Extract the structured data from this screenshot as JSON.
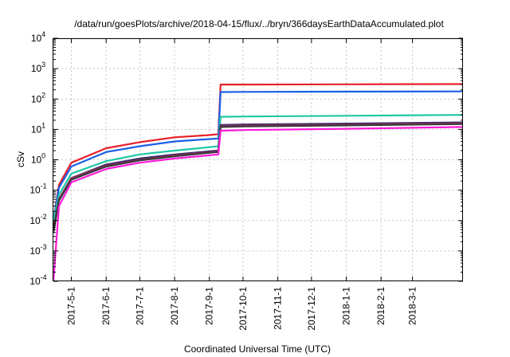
{
  "chart_data": {
    "type": "line",
    "title": "/data/run/goesPlots/archive/2018-04-15/flux/../bryn/366daysEarthDataAccumulated.plot",
    "xlabel": "Coordinated Universal Time (UTC)",
    "ylabel": "cSv",
    "yscale": "log",
    "ylim": [
      0.0001,
      10000
    ],
    "y_ticks": [
      {
        "value": 0.0001,
        "base": "10",
        "exp": "-4"
      },
      {
        "value": 0.001,
        "base": "10",
        "exp": "-3"
      },
      {
        "value": 0.01,
        "base": "10",
        "exp": "-2"
      },
      {
        "value": 0.1,
        "base": "10",
        "exp": "-1"
      },
      {
        "value": 1,
        "base": "10",
        "exp": "0"
      },
      {
        "value": 10,
        "base": "10",
        "exp": "1"
      },
      {
        "value": 100,
        "base": "10",
        "exp": "2"
      },
      {
        "value": 1000,
        "base": "10",
        "exp": "3"
      },
      {
        "value": 10000,
        "base": "10",
        "exp": "4"
      }
    ],
    "xlim": [
      "2017-04-15",
      "2018-04-15"
    ],
    "x_ticks": [
      "2017-5-1",
      "2017-6-1",
      "2017-7-1",
      "2017-8-1",
      "2017-9-1",
      "2017-10-1",
      "2017-11-1",
      "2017-12-1",
      "2018-1-1",
      "2018-2-1",
      "2018-3-1"
    ],
    "x_tick_dates": [
      "2017-05-01",
      "2017-06-01",
      "2017-07-01",
      "2017-08-01",
      "2017-09-01",
      "2017-10-01",
      "2017-11-01",
      "2017-12-01",
      "2018-01-01",
      "2018-02-01",
      "2018-03-01"
    ],
    "grid": true,
    "x": [
      "2017-04-15",
      "2017-04-20",
      "2017-05-01",
      "2017-06-01",
      "2017-07-01",
      "2017-08-01",
      "2017-09-01",
      "2017-09-09",
      "2017-09-11",
      "2017-10-01",
      "2018-01-01",
      "2018-04-15"
    ],
    "series": [
      {
        "color": "#e8202a",
        "values": [
          0.01,
          0.15,
          0.8,
          2.4,
          3.8,
          5.5,
          6.5,
          7,
          300,
          300,
          305,
          310
        ]
      },
      {
        "color": "#1a5fe6",
        "values": [
          0.01,
          0.12,
          0.6,
          1.8,
          2.8,
          4,
          4.8,
          5,
          170,
          172,
          175,
          178
        ]
      },
      {
        "color": "#1fc7a7",
        "values": [
          0.01,
          0.07,
          0.35,
          0.9,
          1.5,
          2,
          2.6,
          2.8,
          26,
          26.5,
          28,
          30
        ]
      },
      {
        "color": "#2b2b6b",
        "values": [
          0.005,
          0.05,
          0.25,
          0.7,
          1.1,
          1.5,
          1.9,
          2.0,
          14,
          14.5,
          15.5,
          17
        ]
      },
      {
        "color": "#8a2b5a",
        "values": [
          0.005,
          0.05,
          0.25,
          0.65,
          1.0,
          1.4,
          1.8,
          1.9,
          13,
          13.5,
          14.5,
          16
        ]
      },
      {
        "color": "#3a3a3a",
        "values": [
          0.004,
          0.045,
          0.22,
          0.6,
          0.95,
          1.3,
          1.7,
          1.8,
          12,
          12.5,
          13.5,
          15
        ]
      },
      {
        "color": "#ff1ad9",
        "values": [
          0.0001,
          0.03,
          0.18,
          0.5,
          0.8,
          1.1,
          1.4,
          1.5,
          9,
          9.5,
          10.5,
          12
        ]
      }
    ]
  }
}
